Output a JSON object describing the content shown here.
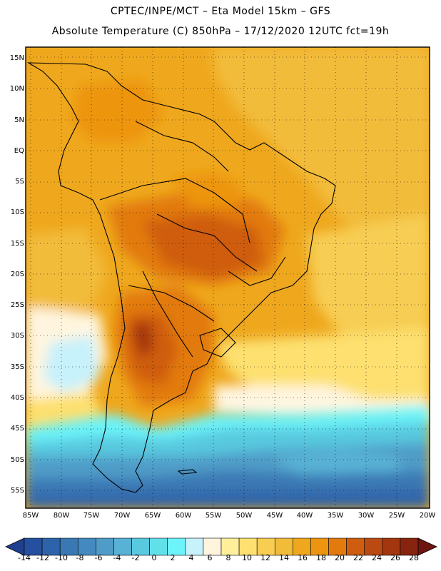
{
  "header": {
    "line1": "CPTEC/INPE/MCT –  Eta Model 15km – GFS",
    "line2": "Absolute Temperature (C) 850hPa – 17/12/2020 12UTC fct=19h"
  },
  "axes": {
    "lat_labels": [
      "15N",
      "10N",
      "5N",
      "EQ",
      "5S",
      "10S",
      "15S",
      "20S",
      "25S",
      "30S",
      "35S",
      "40S",
      "45S",
      "50S",
      "55S"
    ],
    "lon_labels": [
      "85W",
      "80W",
      "75W",
      "70W",
      "65W",
      "60W",
      "55W",
      "50W",
      "45W",
      "40W",
      "35W",
      "30W",
      "25W",
      "20W"
    ]
  },
  "colorbar": {
    "tick_labels": [
      "-14",
      "-12",
      "-10",
      "-8",
      "-6",
      "-4",
      "-2",
      "0",
      "2",
      "4",
      "6",
      "8",
      "10",
      "12",
      "14",
      "16",
      "18",
      "20",
      "22",
      "24",
      "26",
      "28"
    ],
    "colors": [
      "#1f3f8f",
      "#25509f",
      "#2d63aa",
      "#3a78b4",
      "#4489bf",
      "#4f9cc8",
      "#58b2d6",
      "#58c9df",
      "#62e0ea",
      "#6cf4fa",
      "#c7f1fb",
      "#fff5df",
      "#ffee9a",
      "#fde070",
      "#f7cd52",
      "#f2bc3b",
      "#efa81e",
      "#ed9510",
      "#e27a0e",
      "#cf5d10",
      "#bb4a12",
      "#a3350f",
      "#872410",
      "#6d1610"
    ],
    "units": "C"
  }
}
